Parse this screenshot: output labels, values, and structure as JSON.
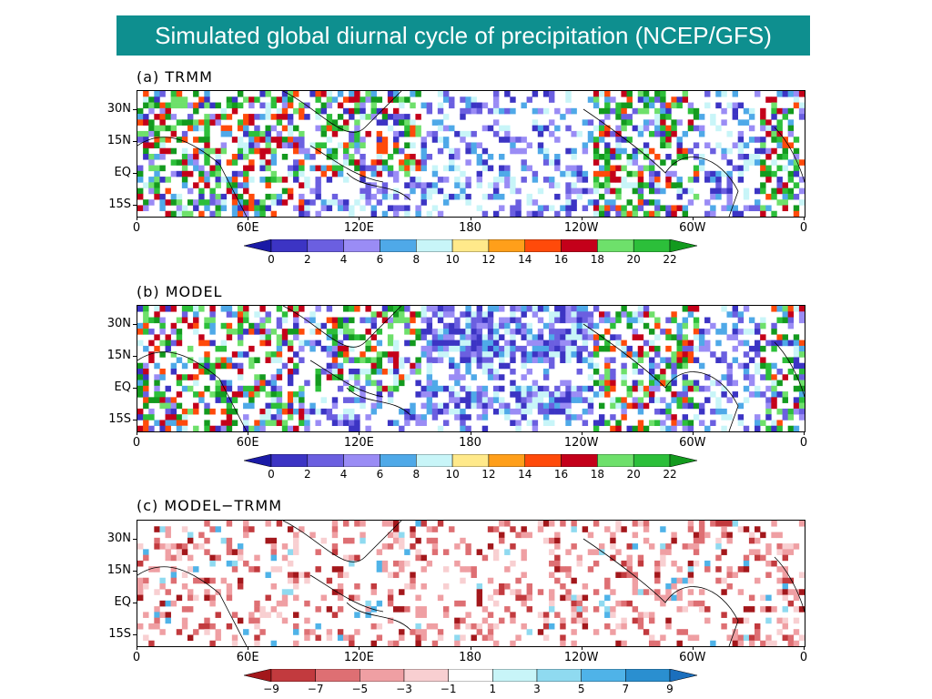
{
  "title": "Simulated global diurnal cycle of precipitation (NCEP/GFS)",
  "chart_data": [
    {
      "type": "heatmap",
      "label": "(a) TRMM",
      "x_ticks": [
        "0",
        "60E",
        "120E",
        "180",
        "120W",
        "60W",
        "0"
      ],
      "y_ticks": [
        "30N",
        "15N",
        "EQ",
        "15S"
      ],
      "colorbar": {
        "ticks": [
          "0",
          "2",
          "4",
          "6",
          "8",
          "10",
          "12",
          "14",
          "16",
          "18",
          "20",
          "22"
        ],
        "colors": [
          "#1a1aa6",
          "#3c34c4",
          "#6b5fe0",
          "#9a8cf5",
          "#4fa9e8",
          "#c8f5f8",
          "#ffe98a",
          "#ff9f1a",
          "#ff4a0a",
          "#c4001a",
          "#6ee06b",
          "#2cbf3a",
          "#139a1e"
        ]
      }
    },
    {
      "type": "heatmap",
      "label": "(b) MODEL",
      "x_ticks": [
        "0",
        "60E",
        "120E",
        "180",
        "120W",
        "60W",
        "0"
      ],
      "y_ticks": [
        "30N",
        "15N",
        "EQ",
        "15S"
      ],
      "colorbar": {
        "ticks": [
          "0",
          "2",
          "4",
          "6",
          "8",
          "10",
          "12",
          "14",
          "16",
          "18",
          "20",
          "22"
        ],
        "colors": [
          "#1a1aa6",
          "#3c34c4",
          "#6b5fe0",
          "#9a8cf5",
          "#4fa9e8",
          "#c8f5f8",
          "#ffe98a",
          "#ff9f1a",
          "#ff4a0a",
          "#c4001a",
          "#6ee06b",
          "#2cbf3a",
          "#139a1e"
        ]
      }
    },
    {
      "type": "heatmap",
      "label": "(c) MODEL−TRMM",
      "x_ticks": [
        "0",
        "60E",
        "120E",
        "180",
        "120W",
        "60W",
        "0"
      ],
      "y_ticks": [
        "30N",
        "15N",
        "EQ",
        "15S"
      ],
      "colorbar": {
        "ticks": [
          "−9",
          "−7",
          "−5",
          "−3",
          "−1",
          "1",
          "3",
          "5",
          "7",
          "9"
        ],
        "colors": [
          "#a3171b",
          "#c23a3e",
          "#de6f73",
          "#ef9fa3",
          "#f8cfd1",
          "#ffffff",
          "#c8f5f8",
          "#8fdaf0",
          "#4fb3e8",
          "#2a8fd0",
          "#1b6fbd"
        ]
      }
    }
  ]
}
